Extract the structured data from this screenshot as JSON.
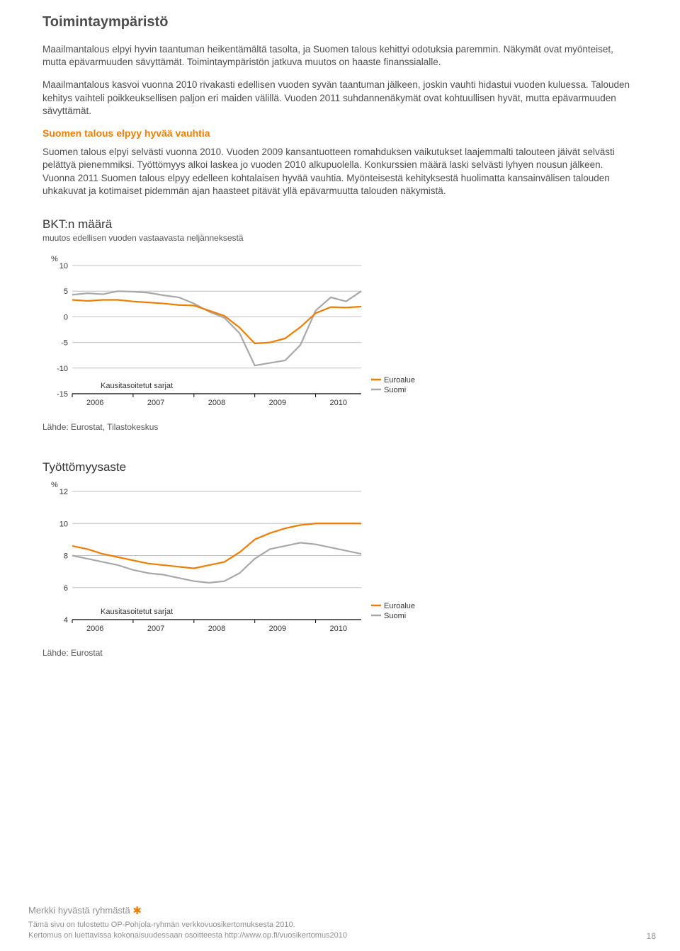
{
  "heading": "Toimintaympäristö",
  "paragraphs": {
    "p1": "Maailmantalous elpyi hyvin taantuman heikentämältä tasolta, ja Suomen talous kehittyi odotuksia paremmin. Näkymät ovat myönteiset, mutta epävarmuuden sävyttämät. Toimintaympäristön jatkuva muutos on haaste finanssialalle.",
    "p2": "Maailmantalous kasvoi vuonna 2010 rivakasti edellisen vuoden syvän taantuman jälkeen, joskin vauhti hidastui vuoden kuluessa. Talouden kehitys vaihteli poikkeuksellisen paljon eri maiden välillä. Vuoden 2011 suhdannenäkymät ovat kohtuullisen hyvät, mutta epävarmuuden sävyttämät.",
    "subhead": "Suomen talous elpyy hyvää vauhtia",
    "p3": "Suomen talous elpyi selvästi vuonna 2010. Vuoden 2009 kansantuotteen romahduksen vaikutukset laajemmalti talouteen jäivät selvästi pelättyä pienemmiksi. Työttömyys alkoi laskea jo vuoden 2010 alkupuolella. Konkurssien määrä laski selvästi lyhyen nousun jälkeen. Vuonna 2011 Suomen talous elpyy edelleen kohtalaisen hyvää vauhtia. Myönteisestä kehityksestä huolimatta kansainvälisen talouden uhkakuvat ja kotimaiset pidemmän ajan haasteet pitävät yllä epävarmuutta talouden näkymistä."
  },
  "chart1": {
    "title": "BKT:n määrä",
    "subtitle": "muutos edellisen vuoden vastaavasta neljänneksestä",
    "y_unit": "%",
    "ylim": [
      -15,
      10
    ],
    "yticks": [
      -15,
      -10,
      -5,
      0,
      5,
      10
    ],
    "years": [
      2006,
      2007,
      2008,
      2009,
      2010
    ],
    "note": "Kausitasoitetut sarjat",
    "legend": [
      "Euroalue",
      "Suomi"
    ],
    "colors": {
      "euro": "#ef7d00",
      "suomi": "#a8a8a8",
      "grid": "#bfbfbf",
      "axis": "#000000"
    },
    "background": "#ffffff",
    "series": {
      "euro": [
        3.3,
        3.1,
        3.3,
        3.3,
        3.0,
        2.8,
        2.6,
        2.3,
        2.2,
        1.2,
        0.2,
        -2.1,
        -5.2,
        -5.0,
        -4.2,
        -2.0,
        0.7,
        1.9,
        1.8,
        2.0
      ],
      "suomi": [
        4.3,
        4.6,
        4.4,
        5.0,
        4.9,
        4.7,
        4.2,
        3.8,
        2.6,
        1.0,
        -0.2,
        -3.2,
        -9.5,
        -9.0,
        -8.5,
        -5.5,
        1.2,
        3.8,
        3.0,
        5.0
      ]
    },
    "source": "Lähde: Eurostat, Tilastokeskus"
  },
  "chart2": {
    "title": "Työttömyysaste",
    "y_unit": "%",
    "ylim": [
      4,
      12
    ],
    "yticks": [
      4,
      6,
      8,
      10,
      12
    ],
    "years": [
      2006,
      2007,
      2008,
      2009,
      2010
    ],
    "note": "Kausitasoitetut sarjat",
    "legend": [
      "Euroalue",
      "Suomi"
    ],
    "colors": {
      "euro": "#ef7d00",
      "suomi": "#a8a8a8",
      "grid": "#bfbfbf",
      "axis": "#000000"
    },
    "background": "#ffffff",
    "series": {
      "euro": [
        8.6,
        8.4,
        8.1,
        7.9,
        7.7,
        7.5,
        7.4,
        7.3,
        7.2,
        7.4,
        7.6,
        8.2,
        9.0,
        9.4,
        9.7,
        9.9,
        10.0,
        10.0,
        10.0,
        10.0
      ],
      "suomi": [
        8.0,
        7.8,
        7.6,
        7.4,
        7.1,
        6.9,
        6.8,
        6.6,
        6.4,
        6.3,
        6.4,
        6.9,
        7.8,
        8.4,
        8.6,
        8.8,
        8.7,
        8.5,
        8.3,
        8.1
      ]
    },
    "source": "Lähde: Eurostat"
  },
  "footer": {
    "brand": "Merkki hyvästä ryhmästä",
    "line1": "Tämä sivu on tulostettu OP-Pohjola-ryhmän verkkovuosikertomuksesta 2010.",
    "line2": "Kertomus on luettavissa kokonaisuudessaan osoitteesta http://www.op.fi/vuosikertomus2010",
    "page": "18"
  }
}
